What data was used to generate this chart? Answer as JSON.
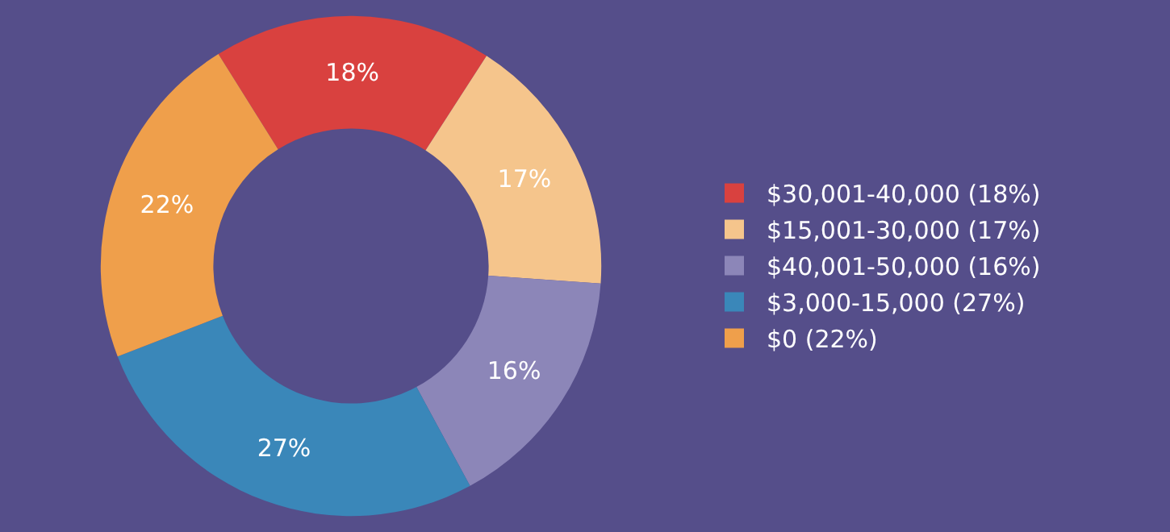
{
  "chart_data": {
    "type": "donut",
    "categories": [
      "$30,001-40,000 (18%)",
      "$15,001-30,000 (17%)",
      "$40,001-50,000 (16%)",
      "$3,000-15,000 (27%)",
      "$0 (22%)"
    ],
    "values": [
      18,
      17,
      16,
      27,
      22
    ],
    "value_labels": [
      "18%",
      "17%",
      "16%",
      "27%",
      "22%"
    ],
    "colors": [
      "#d9413f",
      "#f5c58c",
      "#8c86b8",
      "#3a87b9",
      "#ef9f4b"
    ],
    "legend": "right"
  }
}
